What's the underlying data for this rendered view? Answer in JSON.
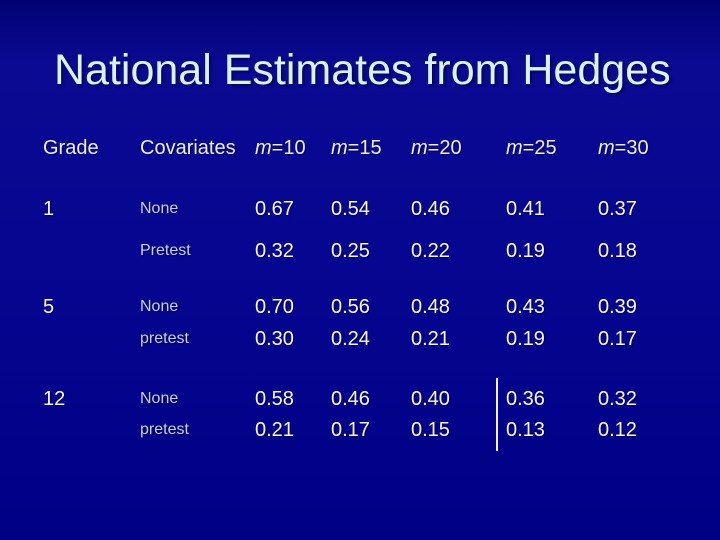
{
  "slide": {
    "title": "National Estimates from Hedges"
  },
  "colors": {
    "background": "#05058F",
    "title_text": "#D9F3F5",
    "header_text": "#ECEEF6",
    "value_text": "#F7F7FB",
    "covariate_text": "#C9CFE0",
    "divider_line": "#F2F2F2"
  },
  "table": {
    "headers": {
      "grade": "Grade",
      "covariates": "Covariates",
      "m_columns": [
        {
          "var": "m",
          "rest": "=10"
        },
        {
          "var": "m",
          "rest": "=15"
        },
        {
          "var": "m",
          "rest": "=20"
        },
        {
          "var": "m",
          "rest": "=25"
        },
        {
          "var": "m",
          "rest": "=30"
        }
      ]
    },
    "rows": [
      {
        "grade": "1",
        "covariate": "None",
        "values": [
          "0.67",
          "0.54",
          "0.46",
          "0.41",
          "0.37"
        ]
      },
      {
        "grade": "",
        "covariate": "Pretest",
        "values": [
          "0.32",
          "0.25",
          "0.22",
          "0.19",
          "0.18"
        ]
      },
      {
        "grade": "5",
        "covariate": "None",
        "values": [
          "0.70",
          "0.56",
          "0.48",
          "0.43",
          "0.39"
        ]
      },
      {
        "grade": "",
        "covariate": "pretest",
        "values": [
          "0.30",
          "0.24",
          "0.21",
          "0.19",
          "0.17"
        ]
      },
      {
        "grade": "12",
        "covariate": "None",
        "values": [
          "0.58",
          "0.46",
          "0.40",
          "0.36",
          "0.32"
        ]
      },
      {
        "grade": "",
        "covariate": "pretest",
        "values": [
          "0.21",
          "0.17",
          "0.15",
          "0.13",
          "0.12"
        ]
      }
    ]
  },
  "chart_data": {
    "type": "table",
    "title": "National Estimates from Hedges",
    "columns": [
      "Grade",
      "Covariates",
      "m=10",
      "m=15",
      "m=20",
      "m=25",
      "m=30"
    ],
    "rows": [
      [
        "1",
        "None",
        0.67,
        0.54,
        0.46,
        0.41,
        0.37
      ],
      [
        "",
        "Pretest",
        0.32,
        0.25,
        0.22,
        0.19,
        0.18
      ],
      [
        "5",
        "None",
        0.7,
        0.56,
        0.48,
        0.43,
        0.39
      ],
      [
        "",
        "pretest",
        0.3,
        0.24,
        0.21,
        0.19,
        0.17
      ],
      [
        "12",
        "None",
        0.58,
        0.46,
        0.4,
        0.36,
        0.32
      ],
      [
        "",
        "pretest",
        0.21,
        0.17,
        0.15,
        0.13,
        0.12
      ]
    ],
    "annotations": [
      "white vertical line between m=20 and m=25 columns spanning the Grade 12 rows"
    ]
  }
}
